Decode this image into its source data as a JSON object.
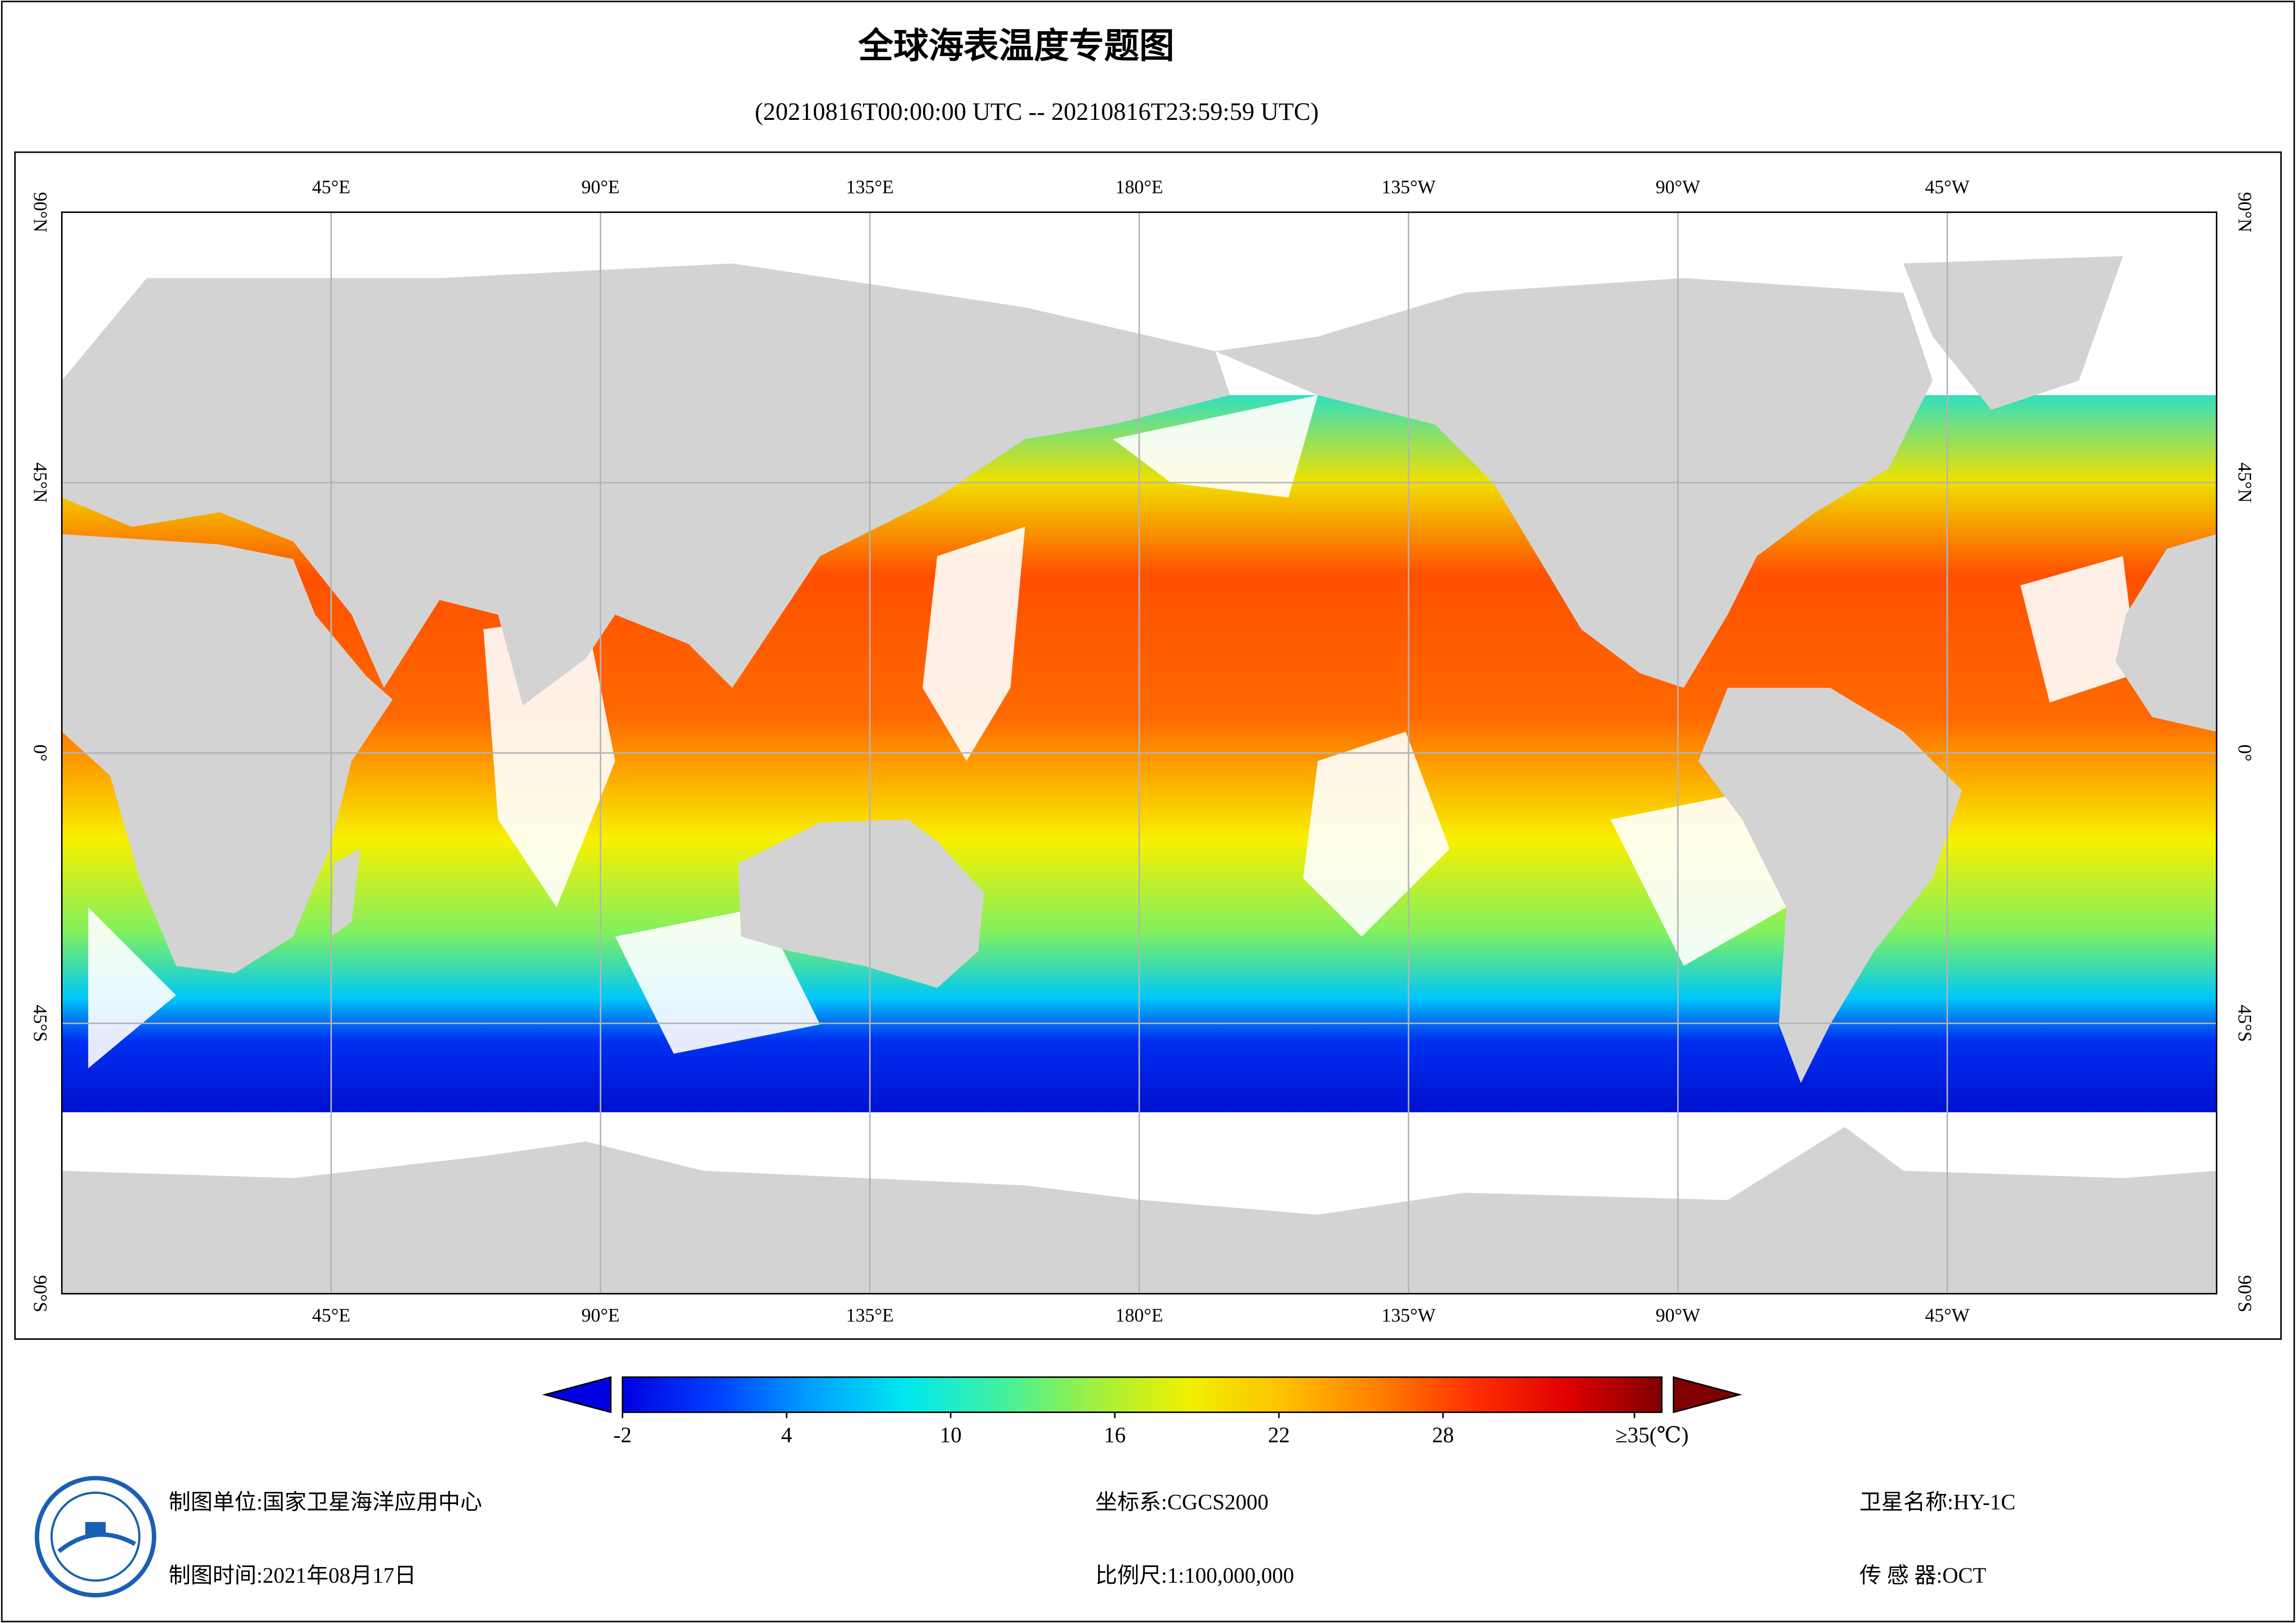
{
  "title": "全球海表温度专题图",
  "subtitle": "(20210816T00:00:00 UTC -- 20210816T23:59:59 UTC)",
  "map": {
    "lon_ticks": [
      {
        "value": 45,
        "label": "45°E"
      },
      {
        "value": 90,
        "label": "90°E"
      },
      {
        "value": 135,
        "label": "135°E"
      },
      {
        "value": 180,
        "label": "180°E"
      },
      {
        "value": 225,
        "label": "135°W"
      },
      {
        "value": 270,
        "label": "90°W"
      },
      {
        "value": 315,
        "label": "45°W"
      }
    ],
    "lat_ticks": [
      {
        "value": 90,
        "label": "90°N"
      },
      {
        "value": 45,
        "label": "45°N"
      },
      {
        "value": 0,
        "label": "0°"
      },
      {
        "value": -45,
        "label": "45°S"
      },
      {
        "value": -90,
        "label": "90°S"
      }
    ],
    "lonlim": [
      0,
      360
    ],
    "latlim": [
      -90,
      90
    ]
  },
  "colorbar": {
    "clim": [
      -2,
      36
    ],
    "ticks": [
      -2,
      4,
      10,
      16,
      22,
      28,
      {
        "value": 35,
        "label": "≥35(℃)"
      }
    ],
    "colors": [
      "#0000e0",
      "#0040ff",
      "#00a0ff",
      "#00e8f0",
      "#40f0a0",
      "#a0f040",
      "#f0f000",
      "#ffc000",
      "#ff8000",
      "#ff3000",
      "#e00000",
      "#800000"
    ]
  },
  "footer": {
    "org": "制图单位:国家卫星海洋应用中心",
    "date": "制图时间:2021年08月17日",
    "crs": "坐标系:CGCS2000",
    "scale": "比例尺:1:100,000,000",
    "satellite": "卫星名称:HY-1C",
    "sensor": "传 感 器:OCT"
  }
}
